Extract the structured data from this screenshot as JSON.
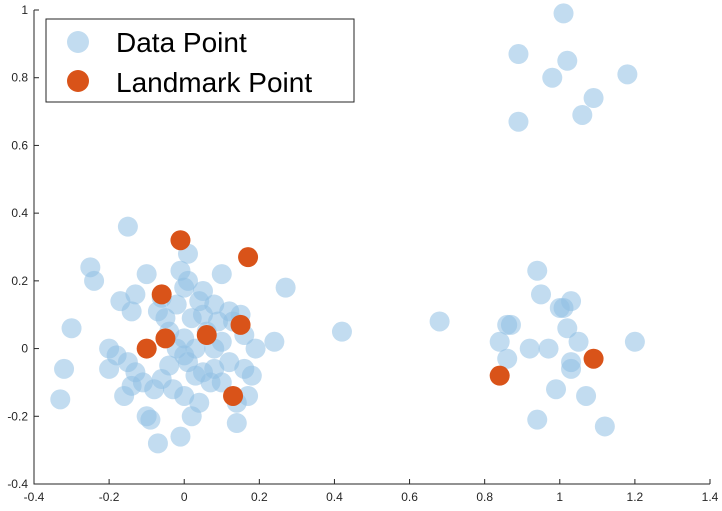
{
  "chart_data": {
    "type": "scatter",
    "xlim": [
      -0.4,
      1.4
    ],
    "ylim": [
      -0.4,
      1.0
    ],
    "xticks": [
      -0.4,
      -0.2,
      0,
      0.2,
      0.4,
      0.6,
      0.8,
      1,
      1.2,
      1.4
    ],
    "xtick_labels": [
      "-0.4",
      "-0.2",
      "0",
      "0.2",
      "0.4",
      "0.6",
      "0.8",
      "1",
      "1.2",
      "1.4"
    ],
    "yticks": [
      -0.4,
      -0.2,
      0,
      0.2,
      0.4,
      0.6,
      0.8,
      1
    ],
    "ytick_labels": [
      "-0.4",
      "-0.2",
      "0",
      "0.2",
      "0.4",
      "0.6",
      "0.8",
      "1"
    ],
    "grid": false,
    "legend_position": "top-left",
    "series": [
      {
        "name": "Data Point",
        "color": "#8fc0e3",
        "opacity": 0.55,
        "points": [
          [
            -0.33,
            -0.15
          ],
          [
            -0.32,
            -0.06
          ],
          [
            -0.3,
            0.06
          ],
          [
            -0.25,
            0.24
          ],
          [
            -0.24,
            0.2
          ],
          [
            -0.2,
            0.0
          ],
          [
            -0.2,
            -0.06
          ],
          [
            -0.18,
            -0.02
          ],
          [
            -0.17,
            0.14
          ],
          [
            -0.16,
            -0.14
          ],
          [
            -0.15,
            0.36
          ],
          [
            -0.15,
            -0.04
          ],
          [
            -0.14,
            0.11
          ],
          [
            -0.14,
            -0.11
          ],
          [
            -0.13,
            0.16
          ],
          [
            -0.13,
            -0.07
          ],
          [
            -0.11,
            -0.1
          ],
          [
            -0.1,
            0.22
          ],
          [
            -0.1,
            -0.2
          ],
          [
            -0.09,
            -0.21
          ],
          [
            -0.08,
            -0.12
          ],
          [
            -0.07,
            0.11
          ],
          [
            -0.07,
            -0.28
          ],
          [
            -0.06,
            0.15
          ],
          [
            -0.06,
            -0.09
          ],
          [
            -0.05,
            0.09
          ],
          [
            -0.04,
            0.05
          ],
          [
            -0.04,
            -0.05
          ],
          [
            -0.03,
            -0.12
          ],
          [
            -0.02,
            0.13
          ],
          [
            -0.02,
            0.0
          ],
          [
            -0.01,
            0.23
          ],
          [
            -0.01,
            -0.26
          ],
          [
            0.0,
            0.18
          ],
          [
            0.0,
            0.03
          ],
          [
            0.0,
            -0.02
          ],
          [
            0.0,
            -0.14
          ],
          [
            0.01,
            0.28
          ],
          [
            0.01,
            0.2
          ],
          [
            0.01,
            -0.04
          ],
          [
            0.02,
            0.09
          ],
          [
            0.02,
            -0.2
          ],
          [
            0.03,
            0.0
          ],
          [
            0.03,
            -0.08
          ],
          [
            0.04,
            0.14
          ],
          [
            0.04,
            -0.16
          ],
          [
            0.05,
            0.17
          ],
          [
            0.05,
            0.1
          ],
          [
            0.05,
            -0.07
          ],
          [
            0.06,
            0.05
          ],
          [
            0.07,
            -0.1
          ],
          [
            0.08,
            0.13
          ],
          [
            0.08,
            0.0
          ],
          [
            0.08,
            -0.06
          ],
          [
            0.09,
            0.08
          ],
          [
            0.1,
            0.22
          ],
          [
            0.1,
            0.02
          ],
          [
            0.1,
            -0.1
          ],
          [
            0.12,
            0.11
          ],
          [
            0.12,
            -0.04
          ],
          [
            0.13,
            0.08
          ],
          [
            0.14,
            -0.16
          ],
          [
            0.14,
            -0.22
          ],
          [
            0.15,
            0.1
          ],
          [
            0.16,
            0.04
          ],
          [
            0.16,
            -0.06
          ],
          [
            0.17,
            -0.14
          ],
          [
            0.18,
            -0.08
          ],
          [
            0.19,
            0.0
          ],
          [
            0.24,
            0.02
          ],
          [
            0.27,
            0.18
          ],
          [
            0.42,
            0.05
          ],
          [
            0.68,
            0.08
          ],
          [
            0.84,
            0.02
          ],
          [
            0.86,
            0.07
          ],
          [
            0.86,
            -0.03
          ],
          [
            0.87,
            0.07
          ],
          [
            0.89,
            0.87
          ],
          [
            0.89,
            0.67
          ],
          [
            0.92,
            0.0
          ],
          [
            0.94,
            0.23
          ],
          [
            0.94,
            -0.21
          ],
          [
            0.95,
            0.16
          ],
          [
            0.97,
            0.0
          ],
          [
            0.98,
            0.8
          ],
          [
            0.99,
            -0.12
          ],
          [
            1.0,
            0.12
          ],
          [
            1.01,
            0.99
          ],
          [
            1.01,
            0.12
          ],
          [
            1.02,
            0.85
          ],
          [
            1.02,
            0.06
          ],
          [
            1.03,
            0.14
          ],
          [
            1.03,
            -0.04
          ],
          [
            1.03,
            -0.06
          ],
          [
            1.05,
            0.02
          ],
          [
            1.06,
            0.69
          ],
          [
            1.07,
            -0.14
          ],
          [
            1.09,
            0.74
          ],
          [
            1.12,
            -0.23
          ],
          [
            1.18,
            0.81
          ],
          [
            1.2,
            0.02
          ]
        ]
      },
      {
        "name": "Landmark Point",
        "color": "#d95319",
        "opacity": 1,
        "points": [
          [
            -0.1,
            0.0
          ],
          [
            -0.06,
            0.16
          ],
          [
            -0.05,
            0.03
          ],
          [
            -0.01,
            0.32
          ],
          [
            0.06,
            0.04
          ],
          [
            0.13,
            -0.14
          ],
          [
            0.15,
            0.07
          ],
          [
            0.17,
            0.27
          ],
          [
            0.84,
            -0.08
          ],
          [
            1.09,
            -0.03
          ]
        ]
      }
    ]
  }
}
